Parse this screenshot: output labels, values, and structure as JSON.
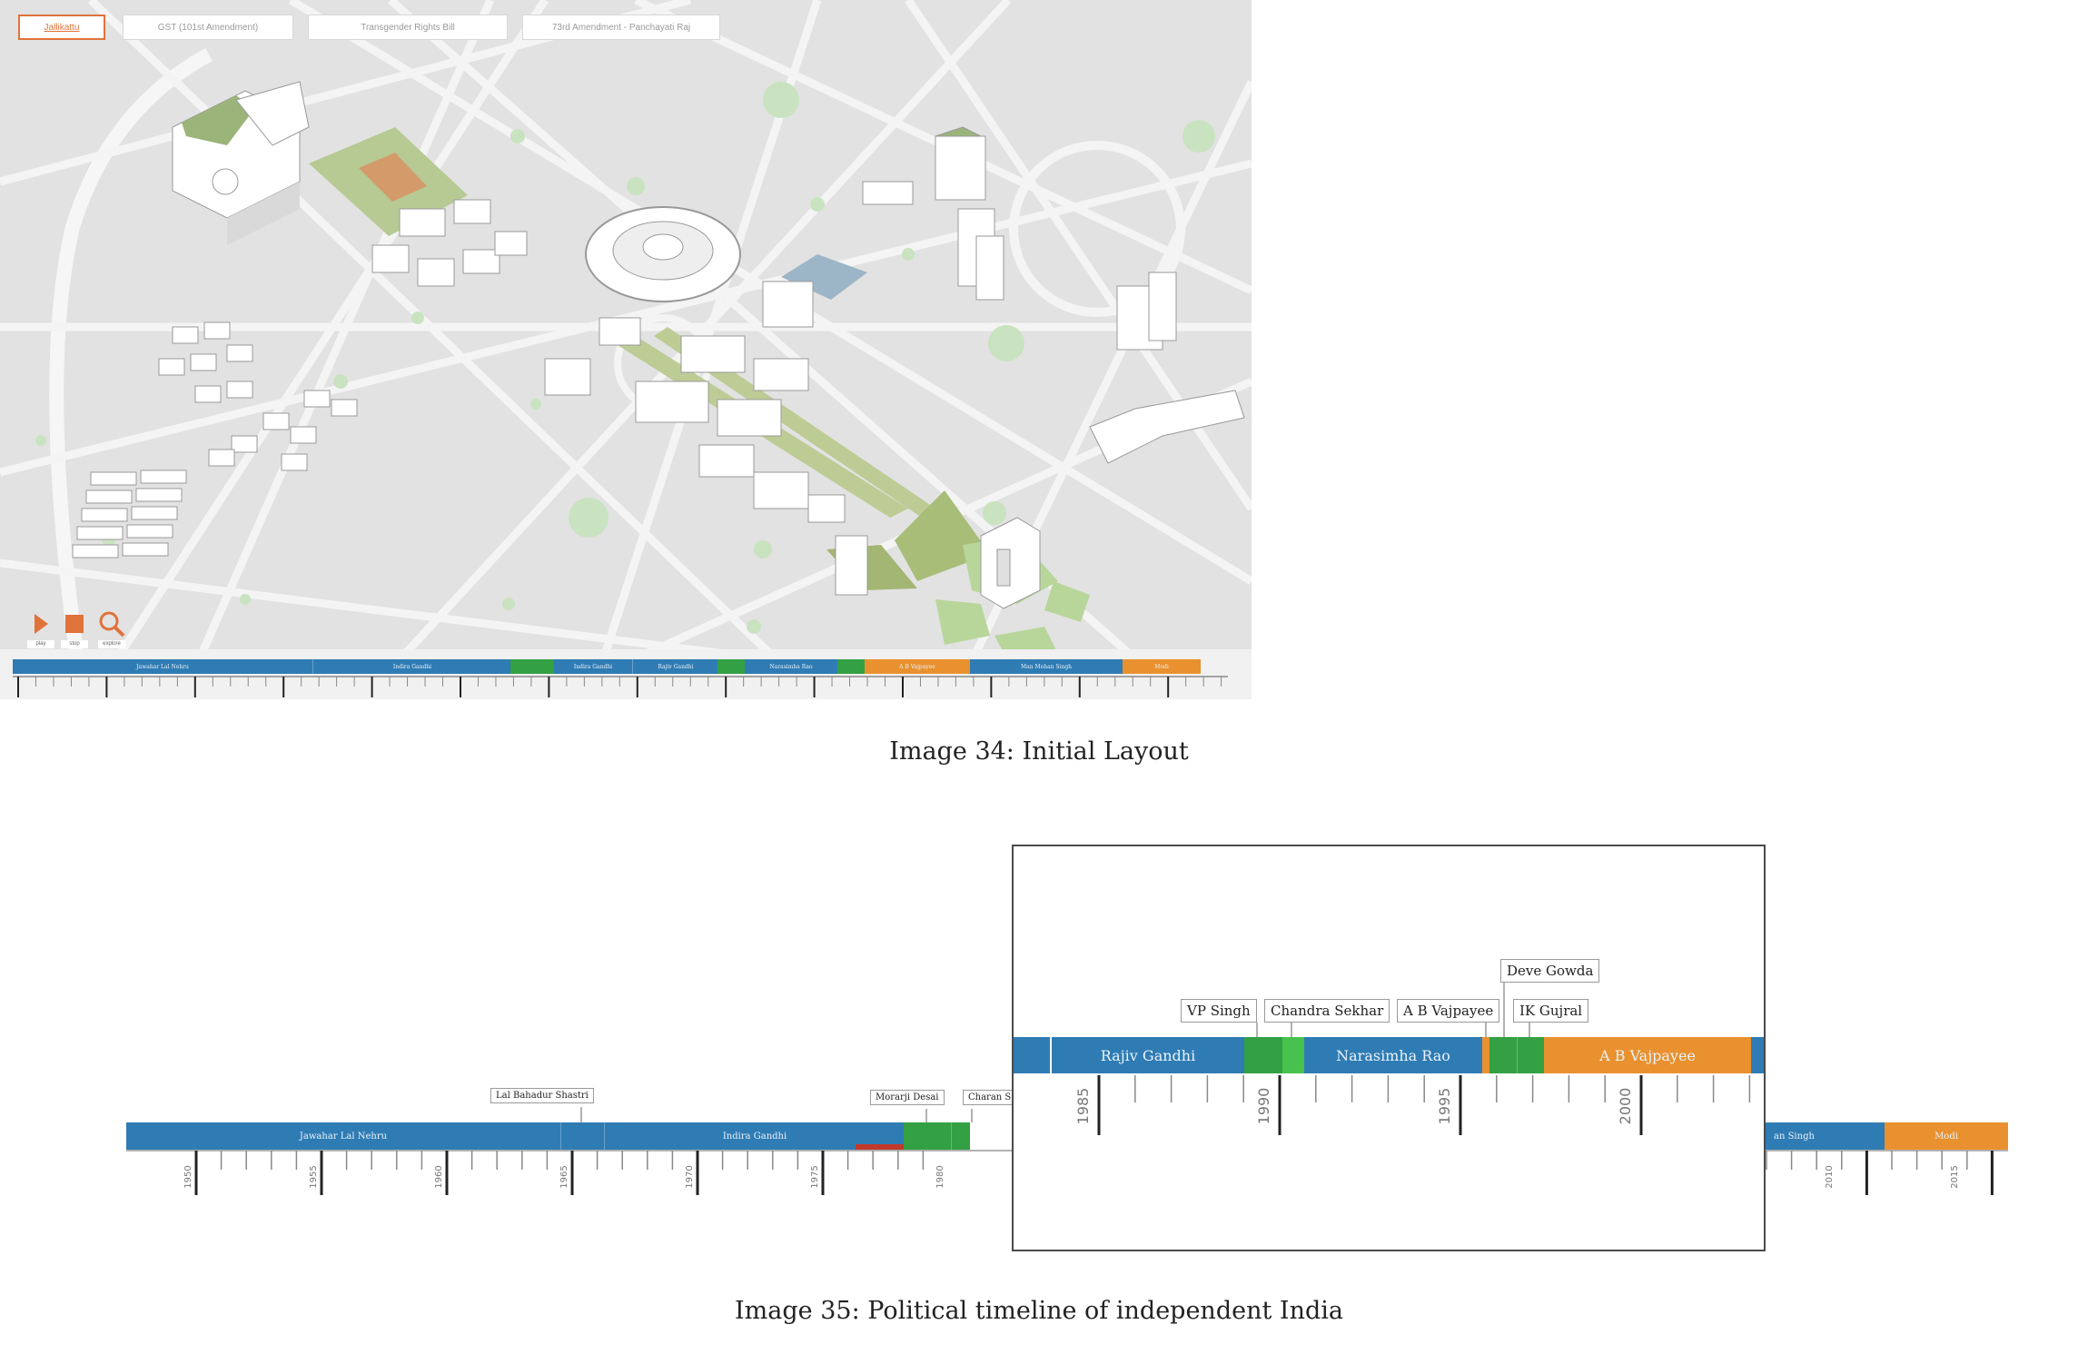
{
  "figure34": {
    "tabs": [
      {
        "label": "Jallikattu",
        "active": true
      },
      {
        "label": "GST (101st Amendment)",
        "active": false
      },
      {
        "label": "Transgender Rights Bill",
        "active": false
      },
      {
        "label": "73rd Amendment - Panchayati Raj",
        "active": false
      }
    ],
    "controls": {
      "play": "play",
      "stop": "stop",
      "explore": "explore"
    },
    "mini_timeline": [
      {
        "label": "Jawahar Lal Nehru",
        "color": "#2f7bb3"
      },
      {
        "label": "Indira Gandhi",
        "color": "#2f7bb3"
      },
      {
        "label": "Indira Gandhi",
        "color": "#2f7bb3"
      },
      {
        "label": "Rajiv Gandhi",
        "color": "#2f7bb3"
      },
      {
        "label": "Narasimha Rao",
        "color": "#2f7bb3"
      },
      {
        "label": "A B Vajpayee",
        "color": "#e8912e"
      },
      {
        "label": "Man Mohan Singh",
        "color": "#2f7bb3"
      },
      {
        "label": "Modi",
        "color": "#e8912e"
      }
    ],
    "caption": "Image 34: Initial Layout"
  },
  "figure35": {
    "colors": {
      "congress": "#2f7bb3",
      "janata": "#33a043",
      "bjp": "#e8912e",
      "emergency": "#c0392b"
    },
    "segments": [
      {
        "label": "Jawahar Lal Nehru"
      },
      {
        "label": "Indira Gandhi"
      },
      {
        "label": "Man Mohan Singh",
        "visible_text": "an Singh"
      },
      {
        "label": "Modi"
      }
    ],
    "outside_labels": [
      "Lal Bahadur Shastri",
      "Morarji Desai",
      "Charan S"
    ],
    "outside_ticks": [
      "1950",
      "1955",
      "1960",
      "1965",
      "1970",
      "1975",
      "1980",
      "2010",
      "2015"
    ],
    "zoom": {
      "segments": [
        {
          "label": "Rajiv Gandhi"
        },
        {
          "label": "Narasimha Rao"
        },
        {
          "label": "A B Vajpayee"
        }
      ],
      "callouts": [
        "VP Singh",
        "Chandra Sekhar",
        "A B Vajpayee",
        "Deve Gowda",
        "IK Gujral"
      ],
      "ticks": [
        "1985",
        "1990",
        "1995",
        "2000"
      ]
    },
    "caption": "Image 35: Political timeline of independent India"
  }
}
